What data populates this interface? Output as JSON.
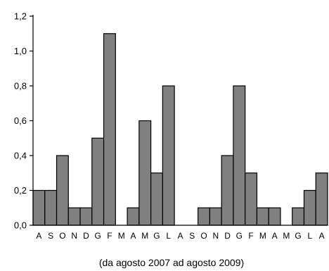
{
  "chart_data": {
    "type": "bar",
    "categories": [
      "A",
      "S",
      "O",
      "N",
      "D",
      "G",
      "F",
      "M",
      "A",
      "M",
      "G",
      "L",
      "A",
      "S",
      "O",
      "N",
      "D",
      "G",
      "F",
      "M",
      "A",
      "M",
      "G",
      "L",
      "A"
    ],
    "values": [
      0.2,
      0.2,
      0.4,
      0.1,
      0.1,
      0.5,
      1.1,
      0,
      0.1,
      0.6,
      0.3,
      0.8,
      0,
      0,
      0.1,
      0.1,
      0.4,
      0.8,
      0.3,
      0.1,
      0.1,
      0,
      0.1,
      0.2,
      0.3
    ],
    "ylim": [
      0,
      1.2
    ],
    "yticks": [
      "0,0",
      "0,2",
      "0,4",
      "0,6",
      "0,8",
      "1,0",
      "1,2"
    ],
    "xlabel": "(da agosto  2007 ad agosto 2009)",
    "grid": false,
    "legend": "none"
  }
}
